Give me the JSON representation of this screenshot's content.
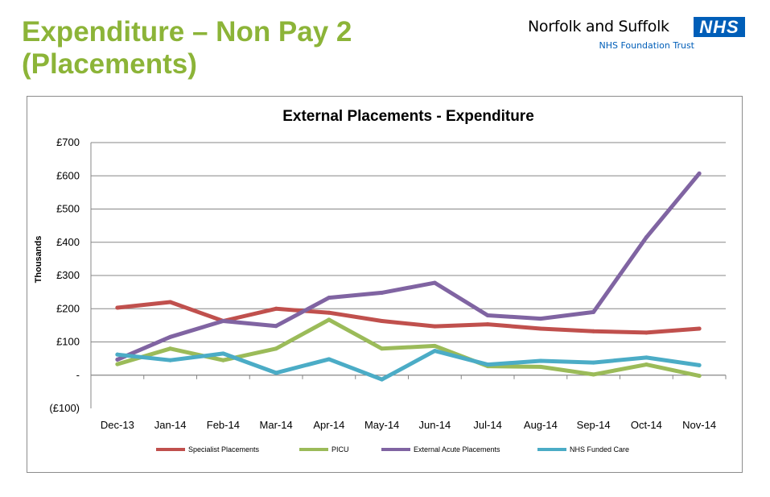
{
  "slide": {
    "title_line1": "Expenditure – Non Pay 2",
    "title_line2": "(Placements)"
  },
  "logo": {
    "name": "Norfolk and Suffolk",
    "badge": "NHS",
    "subtitle": "NHS Foundation Trust",
    "badge_color": "#005eb8"
  },
  "chart_data": {
    "type": "line",
    "title": "External Placements - Expenditure",
    "xlabel": "",
    "ylabel": "Thousands",
    "categories": [
      "Dec-13",
      "Jan-14",
      "Feb-14",
      "Mar-14",
      "Apr-14",
      "May-14",
      "Jun-14",
      "Jul-14",
      "Aug-14",
      "Sep-14",
      "Oct-14",
      "Nov-14"
    ],
    "ylim": [
      -100,
      700
    ],
    "yticks": [
      {
        "value": 700,
        "label": "£700",
        "color": "#000000"
      },
      {
        "value": 600,
        "label": "£600",
        "color": "#000000"
      },
      {
        "value": 500,
        "label": "£500",
        "color": "#000000"
      },
      {
        "value": 400,
        "label": "£400",
        "color": "#000000"
      },
      {
        "value": 300,
        "label": "£300",
        "color": "#000000"
      },
      {
        "value": 200,
        "label": "£200",
        "color": "#000000"
      },
      {
        "value": 100,
        "label": "£100",
        "color": "#000000"
      },
      {
        "value": 0,
        "label": "-",
        "color": "#000000"
      },
      {
        "value": -100,
        "label": "(£100)",
        "color": "#ff0000"
      }
    ],
    "grid": true,
    "legend_position": "bottom",
    "series": [
      {
        "name": "Specialist Placements",
        "color": "#c0504d",
        "values": [
          203,
          220,
          163,
          200,
          188,
          163,
          147,
          153,
          140,
          132,
          128,
          140
        ]
      },
      {
        "name": "PICU",
        "color": "#9bbb59",
        "values": [
          33,
          80,
          45,
          80,
          167,
          80,
          88,
          27,
          25,
          2,
          32,
          -2
        ]
      },
      {
        "name": "External Acute Placements",
        "color": "#8064a2",
        "values": [
          47,
          115,
          163,
          148,
          233,
          248,
          278,
          180,
          170,
          190,
          415,
          607
        ]
      },
      {
        "name": "NHS Funded Care",
        "color": "#4bacc6",
        "values": [
          62,
          45,
          65,
          7,
          48,
          -13,
          73,
          32,
          43,
          38,
          53,
          30
        ]
      }
    ]
  }
}
